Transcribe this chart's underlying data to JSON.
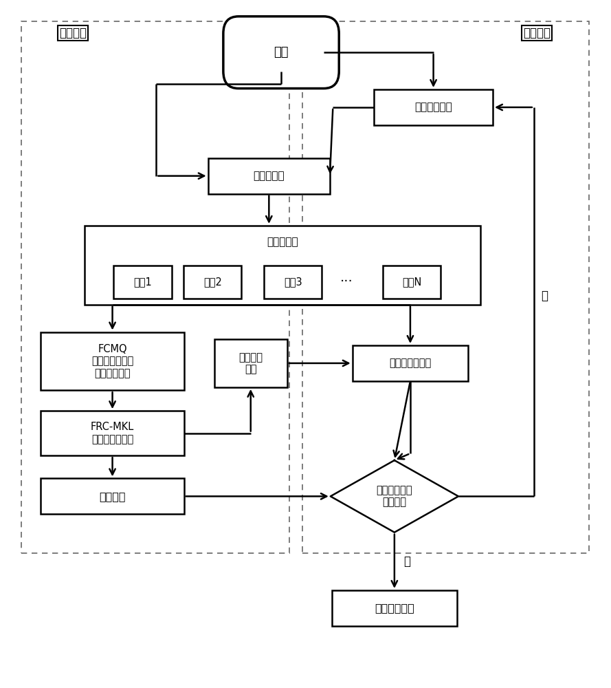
{
  "bg_color": "#ffffff",
  "line_color": "#000000",
  "fig_width": 8.89,
  "fig_height": 10.0,
  "train_label": "训练阶段",
  "detect_label": "检测阶段",
  "start_text": "开始",
  "img_collect_text": "图像实时采集",
  "img_preprocess_text": "图像预处理",
  "feat_extract_text": "多特征提取",
  "feat1_text": "特征1",
  "feat2_text": "特征2",
  "feat3_text": "特征3",
  "featN_text": "特征N",
  "dots_text": "···",
  "fcmq_text": "FCMQ\n特征与评价指标\n映射关系分析",
  "mkl_text": "多核学习\n模型",
  "multi_fuse_text": "多特征信息融合",
  "frc_mkl_text": "FRC-MKL\n特征融合与学习",
  "classify_text": "分类结果",
  "judge_text": "判断是否存在\n外观缺陷",
  "output_text": "输出检测结果",
  "yes_text": "是",
  "no_text": "否"
}
